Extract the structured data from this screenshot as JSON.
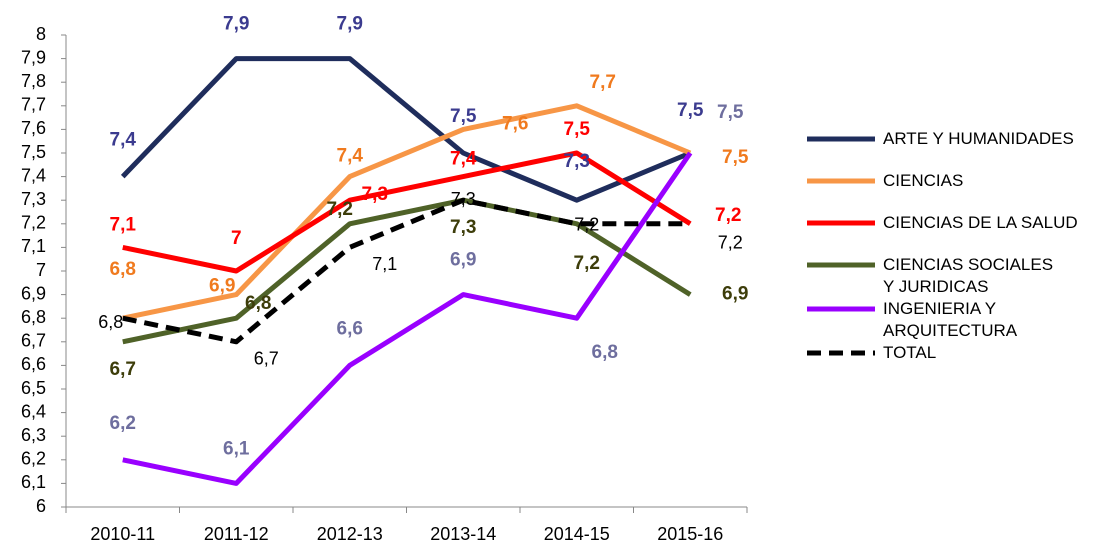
{
  "chart_data": {
    "type": "line",
    "categories": [
      "2010-11",
      "2011-12",
      "2012-13",
      "2013-14",
      "2014-15",
      "2015-16"
    ],
    "ylim": [
      6,
      8
    ],
    "yticks": [
      6,
      {
        "value": 6.1,
        "label": "6,1"
      },
      {
        "value": 6.2,
        "label": "6,2"
      },
      {
        "value": 6.3,
        "label": "6,3"
      },
      {
        "value": 6.4,
        "label": "6,4"
      },
      {
        "value": 6.5,
        "label": "6,5"
      },
      {
        "value": 6.6,
        "label": "6,6"
      },
      {
        "value": 6.7,
        "label": "6,7"
      },
      {
        "value": 6.8,
        "label": "6,8"
      },
      {
        "value": 6.9,
        "label": "6,9"
      },
      7,
      {
        "value": 7.1,
        "label": "7,1"
      },
      {
        "value": 7.2,
        "label": "7,2"
      },
      {
        "value": 7.3,
        "label": "7,3"
      },
      {
        "value": 7.4,
        "label": "7,4"
      },
      {
        "value": 7.5,
        "label": "7,5"
      },
      {
        "value": 7.6,
        "label": "7,6"
      },
      {
        "value": 7.7,
        "label": "7,7"
      },
      {
        "value": 7.8,
        "label": "7,8"
      },
      {
        "value": 7.9,
        "label": "7,9"
      },
      8
    ],
    "legend": "right",
    "series": [
      {
        "name": "ARTE Y HUMANIDADES",
        "color": "#1f2d5c",
        "label_color": "#3b3b8f",
        "values": [
          7.4,
          7.9,
          7.9,
          7.5,
          7.3,
          7.5
        ],
        "value_labels": [
          "7,4",
          "7,9",
          "7,9",
          "7,5",
          "7,3",
          "7,5"
        ]
      },
      {
        "name": "CIENCIAS",
        "color": "#f79646",
        "label_color": "#f07a1e",
        "values": [
          6.8,
          6.9,
          7.4,
          7.6,
          7.7,
          7.5
        ],
        "value_labels": [
          "6,8",
          "6,9",
          "7,4",
          "7,6",
          "7,7",
          "7,5"
        ]
      },
      {
        "name": "CIENCIAS DE LA SALUD",
        "color": "#ff0000",
        "label_color": "#ff0000",
        "values": [
          7.1,
          7.0,
          7.3,
          7.4,
          7.5,
          7.2
        ],
        "value_labels": [
          "7,1",
          "7",
          "7,3",
          "7,4",
          "7,5",
          "7,2"
        ]
      },
      {
        "name": "CIENCIAS  SOCIALES Y JURIDICAS",
        "color": "#4f6228",
        "label_color": "#3d3d0a",
        "values": [
          6.7,
          6.8,
          7.2,
          7.3,
          7.2,
          6.9
        ],
        "value_labels": [
          "6,7",
          "6,8",
          "7,2",
          "7,3",
          "7,2",
          "6,9"
        ]
      },
      {
        "name": "INGENIERIA Y ARQUITECTURA",
        "color": "#9900ff",
        "label_color": "#6e6e9e",
        "values": [
          6.2,
          6.1,
          6.6,
          6.9,
          6.8,
          7.5
        ],
        "value_labels": [
          "6,2",
          "6,1",
          "6,6",
          "6,9",
          "6,8",
          "7,5"
        ]
      },
      {
        "name": "TOTAL",
        "color": "#000000",
        "label_color": "#000000",
        "dashed": true,
        "values": [
          6.8,
          6.7,
          7.1,
          7.3,
          7.2,
          7.2
        ],
        "value_labels": [
          "6,8",
          "6,7",
          "7,1",
          "7,3",
          "7,2",
          "7,2"
        ]
      }
    ]
  }
}
